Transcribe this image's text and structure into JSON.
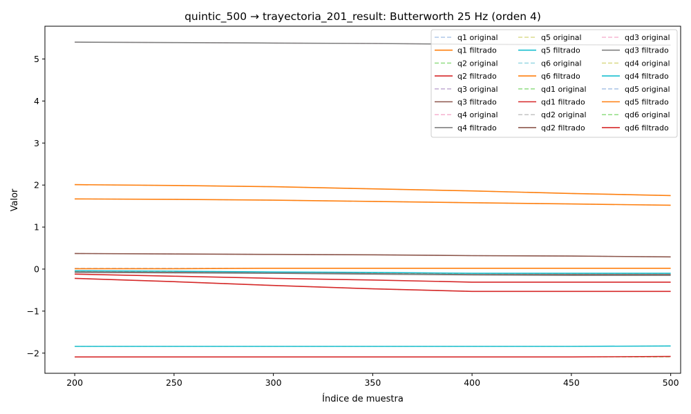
{
  "chart_data": {
    "type": "line",
    "title": "quintic_500 → trayectoria_201_result: Butterworth 25 Hz (orden 4)",
    "xlabel": "Índice de muestra",
    "ylabel": "Valor",
    "xlim": [
      185,
      505
    ],
    "ylim": [
      -2.48,
      5.78
    ],
    "xticks": [
      200,
      250,
      300,
      350,
      400,
      450,
      500
    ],
    "yticks": [
      -2,
      -1,
      0,
      1,
      2,
      3,
      4,
      5
    ],
    "ytick_labels": [
      "−2",
      "−1",
      "0",
      "1",
      "2",
      "3",
      "4",
      "5"
    ],
    "grid": false,
    "legend_position": "top-right",
    "legend_columns": 3,
    "x": [
      200,
      250,
      300,
      350,
      400,
      450,
      500
    ],
    "series": [
      {
        "name": "q1 original",
        "color": "#aec7e8",
        "dashed": true,
        "values": [
          1.67,
          1.66,
          1.64,
          1.61,
          1.58,
          1.55,
          1.52
        ]
      },
      {
        "name": "q1 filtrado",
        "color": "#ff7f0e",
        "dashed": false,
        "values": [
          1.67,
          1.66,
          1.64,
          1.61,
          1.58,
          1.55,
          1.52
        ]
      },
      {
        "name": "q2 original",
        "color": "#98df8a",
        "dashed": true,
        "values": [
          -0.22,
          -0.3,
          -0.39,
          -0.47,
          -0.53,
          -0.53,
          -0.53
        ]
      },
      {
        "name": "q2 filtrado",
        "color": "#d62728",
        "dashed": false,
        "values": [
          -0.22,
          -0.3,
          -0.39,
          -0.47,
          -0.53,
          -0.53,
          -0.53
        ]
      },
      {
        "name": "q3 original",
        "color": "#c5b0d5",
        "dashed": true,
        "values": [
          0.37,
          0.36,
          0.35,
          0.34,
          0.32,
          0.31,
          0.29
        ]
      },
      {
        "name": "q3 filtrado",
        "color": "#8c564b",
        "dashed": false,
        "values": [
          0.37,
          0.36,
          0.35,
          0.34,
          0.32,
          0.31,
          0.29
        ]
      },
      {
        "name": "q4 original",
        "color": "#f7b6d2",
        "dashed": true,
        "values": [
          5.4,
          5.39,
          5.38,
          5.37,
          5.35,
          5.34,
          5.33
        ]
      },
      {
        "name": "q4 filtrado",
        "color": "#7f7f7f",
        "dashed": false,
        "values": [
          5.4,
          5.39,
          5.38,
          5.37,
          5.35,
          5.34,
          5.33
        ]
      },
      {
        "name": "q5 original",
        "color": "#dbdb8d",
        "dashed": true,
        "values": [
          -1.84,
          -1.84,
          -1.84,
          -1.84,
          -1.84,
          -1.84,
          -1.83
        ]
      },
      {
        "name": "q5 filtrado",
        "color": "#17becf",
        "dashed": false,
        "values": [
          -1.84,
          -1.84,
          -1.84,
          -1.84,
          -1.84,
          -1.84,
          -1.83
        ]
      },
      {
        "name": "q6 original",
        "color": "#9edae5",
        "dashed": true,
        "values": [
          2.01,
          1.99,
          1.96,
          1.91,
          1.86,
          1.8,
          1.75
        ]
      },
      {
        "name": "q6 filtrado",
        "color": "#ff7f0e",
        "dashed": false,
        "values": [
          2.01,
          1.99,
          1.96,
          1.91,
          1.86,
          1.8,
          1.75
        ]
      },
      {
        "name": "qd1 original",
        "color": "#98df8a",
        "dashed": true,
        "values": [
          -0.05,
          -0.06,
          -0.08,
          -0.1,
          -0.11,
          -0.11,
          -0.1
        ]
      },
      {
        "name": "qd1 filtrado",
        "color": "#d62728",
        "dashed": false,
        "values": [
          -0.12,
          -0.17,
          -0.22,
          -0.26,
          -0.31,
          -0.31,
          -0.31
        ]
      },
      {
        "name": "qd2 original",
        "color": "#c7c7c7",
        "dashed": true,
        "values": [
          -0.07,
          -0.08,
          -0.09,
          -0.11,
          -0.13,
          -0.13,
          -0.13
        ]
      },
      {
        "name": "qd2 filtrado",
        "color": "#8c564b",
        "dashed": false,
        "values": [
          -0.07,
          -0.08,
          -0.09,
          -0.11,
          -0.13,
          -0.13,
          -0.13
        ]
      },
      {
        "name": "qd3 original",
        "color": "#f7b6d2",
        "dashed": true,
        "values": [
          -0.08,
          -0.09,
          -0.1,
          -0.12,
          -0.14,
          -0.15,
          -0.15
        ]
      },
      {
        "name": "qd3 filtrado",
        "color": "#7f7f7f",
        "dashed": false,
        "values": [
          -0.08,
          -0.09,
          -0.1,
          -0.12,
          -0.14,
          -0.15,
          -0.15
        ]
      },
      {
        "name": "qd4 original",
        "color": "#dbdb8d",
        "dashed": true,
        "values": [
          -0.04,
          -0.05,
          -0.07,
          -0.08,
          -0.1,
          -0.1,
          -0.1
        ]
      },
      {
        "name": "qd4 filtrado",
        "color": "#17becf",
        "dashed": false,
        "values": [
          -0.04,
          -0.05,
          -0.07,
          -0.08,
          -0.1,
          -0.1,
          -0.1
        ]
      },
      {
        "name": "qd5 original",
        "color": "#aec7e8",
        "dashed": true,
        "values": [
          0.02,
          0.02,
          0.02,
          0.02,
          0.02,
          0.02,
          0.02
        ]
      },
      {
        "name": "qd5 filtrado",
        "color": "#ff7f0e",
        "dashed": false,
        "values": [
          0.01,
          0.01,
          0.02,
          0.02,
          0.02,
          0.02,
          0.02
        ]
      },
      {
        "name": "qd6 original",
        "color": "#98df8a",
        "dashed": true,
        "values": [
          -2.09,
          -2.09,
          -2.09,
          -2.09,
          -2.09,
          -2.09,
          -2.09
        ]
      },
      {
        "name": "qd6 filtrado",
        "color": "#d62728",
        "dashed": false,
        "values": [
          -2.09,
          -2.09,
          -2.09,
          -2.09,
          -2.09,
          -2.09,
          -2.08
        ]
      }
    ]
  }
}
